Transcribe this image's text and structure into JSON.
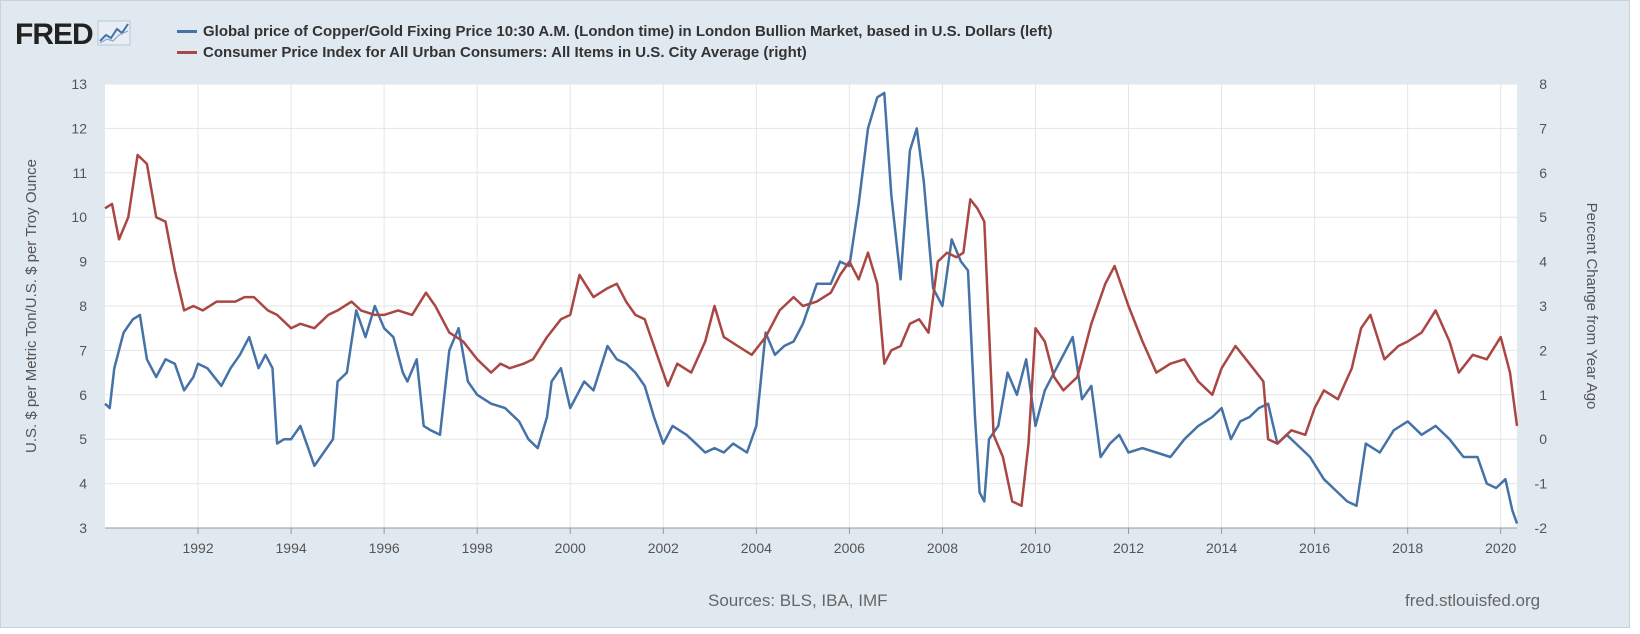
{
  "brand": {
    "name": "FRED"
  },
  "legend": {
    "items": [
      {
        "label": "Global price of Copper/Gold Fixing Price 10:30 A.M. (London time) in London Bullion Market, based in U.S. Dollars (left)",
        "color": "#4572a7"
      },
      {
        "label": "Consumer Price Index for All Urban Consumers: All Items in U.S. City Average (right)",
        "color": "#aa4643"
      }
    ]
  },
  "footer": {
    "sources": "Sources: BLS, IBA, IMF",
    "url": "fred.stlouisfed.org"
  },
  "colors": {
    "background": "#e1e9f0",
    "plot": "#ffffff",
    "grid": "#e6e6e6",
    "copper_gold": "#4572a7",
    "cpi": "#aa4643"
  },
  "chart_data": {
    "type": "line",
    "title": "",
    "xlabel": "",
    "ylabel_left": "U.S. $ per Metric Ton/U.S. $ per Troy Ounce",
    "ylabel_right": "Percent Change from Year Ago",
    "xlim": [
      1990.0,
      2020.35
    ],
    "ylim_left": [
      3,
      13
    ],
    "ylim_right": [
      -2,
      8
    ],
    "x_ticks": [
      1992,
      1994,
      1996,
      1998,
      2000,
      2002,
      2004,
      2006,
      2008,
      2010,
      2012,
      2014,
      2016,
      2018,
      2020
    ],
    "x_tick_labels": [
      "1992",
      "1994",
      "1996",
      "1998",
      "2000",
      "2002",
      "2004",
      "2006",
      "2008",
      "2010",
      "2012",
      "2014",
      "2016",
      "2018",
      "2020"
    ],
    "y_left_ticks": [
      3,
      4,
      5,
      6,
      7,
      8,
      9,
      10,
      11,
      12,
      13
    ],
    "y_left_tick_labels": [
      "3",
      "4",
      "5",
      "6",
      "7",
      "8",
      "9",
      "10",
      "11",
      "12",
      "13"
    ],
    "y_right_ticks": [
      -2,
      -1,
      0,
      1,
      2,
      3,
      4,
      5,
      6,
      7,
      8
    ],
    "y_right_tick_labels": [
      "-2",
      "-1",
      "0",
      "1",
      "2",
      "3",
      "4",
      "5",
      "6",
      "7",
      "8"
    ],
    "grid": true,
    "legend_position": "top",
    "series": [
      {
        "name": "Global price of Copper/Gold Fixing Price 10:30 A.M. (London time) in London Bullion Market, based in U.S. Dollars (left)",
        "axis": "left",
        "x": [
          1990.0,
          1990.1,
          1990.2,
          1990.4,
          1990.6,
          1990.75,
          1990.9,
          1991.1,
          1991.3,
          1991.5,
          1991.7,
          1991.9,
          1992.0,
          1992.2,
          1992.5,
          1992.7,
          1992.9,
          1993.1,
          1993.3,
          1993.45,
          1993.6,
          1993.7,
          1993.85,
          1994.0,
          1994.2,
          1994.5,
          1994.7,
          1994.9,
          1995.0,
          1995.2,
          1995.4,
          1995.6,
          1995.8,
          1996.0,
          1996.2,
          1996.4,
          1996.5,
          1996.7,
          1996.85,
          1997.0,
          1997.2,
          1997.4,
          1997.6,
          1997.8,
          1998.0,
          1998.3,
          1998.6,
          1998.9,
          1999.1,
          1999.3,
          1999.5,
          1999.6,
          1999.8,
          2000.0,
          2000.3,
          2000.5,
          2000.8,
          2001.0,
          2001.2,
          2001.4,
          2001.6,
          2001.8,
          2002.0,
          2002.2,
          2002.5,
          2002.7,
          2002.9,
          2003.1,
          2003.3,
          2003.5,
          2003.8,
          2004.0,
          2004.2,
          2004.4,
          2004.6,
          2004.8,
          2005.0,
          2005.3,
          2005.6,
          2005.8,
          2006.0,
          2006.2,
          2006.4,
          2006.6,
          2006.75,
          2006.9,
          2007.1,
          2007.3,
          2007.45,
          2007.6,
          2007.8,
          2008.0,
          2008.2,
          2008.4,
          2008.55,
          2008.7,
          2008.8,
          2008.9,
          2009.0,
          2009.2,
          2009.4,
          2009.6,
          2009.8,
          2010.0,
          2010.2,
          2010.4,
          2010.6,
          2010.8,
          2011.0,
          2011.2,
          2011.4,
          2011.6,
          2011.8,
          2012.0,
          2012.3,
          2012.6,
          2012.9,
          2013.2,
          2013.5,
          2013.8,
          2014.0,
          2014.2,
          2014.4,
          2014.6,
          2014.8,
          2015.0,
          2015.2,
          2015.4,
          2015.6,
          2015.9,
          2016.2,
          2016.5,
          2016.7,
          2016.9,
          2017.1,
          2017.4,
          2017.7,
          2018.0,
          2018.3,
          2018.6,
          2018.9,
          2019.2,
          2019.5,
          2019.7,
          2019.9,
          2020.1,
          2020.25,
          2020.35
        ],
        "values": [
          5.8,
          5.7,
          6.6,
          7.4,
          7.7,
          7.8,
          6.8,
          6.4,
          6.8,
          6.7,
          6.1,
          6.4,
          6.7,
          6.6,
          6.2,
          6.6,
          6.9,
          7.3,
          6.6,
          6.9,
          6.6,
          4.9,
          5.0,
          5.0,
          5.3,
          4.4,
          4.7,
          5.0,
          6.3,
          6.5,
          7.9,
          7.3,
          8.0,
          7.5,
          7.3,
          6.5,
          6.3,
          6.8,
          5.3,
          5.2,
          5.1,
          7.0,
          7.5,
          6.3,
          6.0,
          5.8,
          5.7,
          5.4,
          5.0,
          4.8,
          5.5,
          6.3,
          6.6,
          5.7,
          6.3,
          6.1,
          7.1,
          6.8,
          6.7,
          6.5,
          6.2,
          5.5,
          4.9,
          5.3,
          5.1,
          4.9,
          4.7,
          4.8,
          4.7,
          4.9,
          4.7,
          5.3,
          7.4,
          6.9,
          7.1,
          7.2,
          7.6,
          8.5,
          8.5,
          9.0,
          8.9,
          10.3,
          12.0,
          12.7,
          12.8,
          10.5,
          8.6,
          11.5,
          12.0,
          10.8,
          8.4,
          8.0,
          9.5,
          9.0,
          8.8,
          5.5,
          3.8,
          3.6,
          5.0,
          5.3,
          6.5,
          6.0,
          6.8,
          5.3,
          6.1,
          6.5,
          6.9,
          7.3,
          5.9,
          6.2,
          4.6,
          4.9,
          5.1,
          4.7,
          4.8,
          4.7,
          4.6,
          5.0,
          5.3,
          5.5,
          5.7,
          5.0,
          5.4,
          5.5,
          5.7,
          5.8,
          4.9,
          5.1,
          4.9,
          4.6,
          4.1,
          3.8,
          3.6,
          3.5,
          4.9,
          4.7,
          5.2,
          5.4,
          5.1,
          5.3,
          5.0,
          4.6,
          4.6,
          4.0,
          3.9,
          4.1,
          3.4,
          3.1
        ],
        "color": "#4572a7"
      },
      {
        "name": "Consumer Price Index for All Urban Consumers: All Items in U.S. City Average (right)",
        "axis": "right",
        "x": [
          1990.0,
          1990.15,
          1990.3,
          1990.5,
          1990.7,
          1990.9,
          1991.1,
          1991.3,
          1991.5,
          1991.7,
          1991.9,
          1992.1,
          1992.4,
          1992.6,
          1992.8,
          1993.0,
          1993.2,
          1993.5,
          1993.7,
          1994.0,
          1994.2,
          1994.5,
          1994.8,
          1995.0,
          1995.3,
          1995.5,
          1995.8,
          1996.0,
          1996.3,
          1996.6,
          1996.9,
          1997.1,
          1997.4,
          1997.7,
          1998.0,
          1998.3,
          1998.5,
          1998.7,
          1999.0,
          1999.2,
          1999.5,
          1999.8,
          2000.0,
          2000.2,
          2000.5,
          2000.8,
          2001.0,
          2001.2,
          2001.4,
          2001.6,
          2001.9,
          2002.1,
          2002.3,
          2002.6,
          2002.9,
          2003.1,
          2003.3,
          2003.6,
          2003.9,
          2004.2,
          2004.5,
          2004.8,
          2005.0,
          2005.3,
          2005.6,
          2005.8,
          2006.0,
          2006.2,
          2006.4,
          2006.6,
          2006.75,
          2006.9,
          2007.1,
          2007.3,
          2007.5,
          2007.7,
          2007.9,
          2008.1,
          2008.3,
          2008.45,
          2008.6,
          2008.75,
          2008.9,
          2009.1,
          2009.3,
          2009.5,
          2009.7,
          2009.85,
          2010.0,
          2010.2,
          2010.4,
          2010.6,
          2010.9,
          2011.2,
          2011.5,
          2011.7,
          2012.0,
          2012.3,
          2012.6,
          2012.9,
          2013.2,
          2013.5,
          2013.8,
          2014.0,
          2014.3,
          2014.6,
          2014.9,
          2015.0,
          2015.2,
          2015.5,
          2015.8,
          2016.0,
          2016.2,
          2016.5,
          2016.8,
          2017.0,
          2017.2,
          2017.5,
          2017.8,
          2018.0,
          2018.3,
          2018.6,
          2018.9,
          2019.1,
          2019.4,
          2019.7,
          2020.0,
          2020.2,
          2020.35
        ],
        "values": [
          5.2,
          5.3,
          4.5,
          5.0,
          6.4,
          6.2,
          5.0,
          4.9,
          3.8,
          2.9,
          3.0,
          2.9,
          3.1,
          3.1,
          3.1,
          3.2,
          3.2,
          2.9,
          2.8,
          2.5,
          2.6,
          2.5,
          2.8,
          2.9,
          3.1,
          2.9,
          2.8,
          2.8,
          2.9,
          2.8,
          3.3,
          3.0,
          2.4,
          2.2,
          1.8,
          1.5,
          1.7,
          1.6,
          1.7,
          1.8,
          2.3,
          2.7,
          2.8,
          3.7,
          3.2,
          3.4,
          3.5,
          3.1,
          2.8,
          2.7,
          1.8,
          1.2,
          1.7,
          1.5,
          2.2,
          3.0,
          2.3,
          2.1,
          1.9,
          2.3,
          2.9,
          3.2,
          3.0,
          3.1,
          3.3,
          3.7,
          4.0,
          3.6,
          4.2,
          3.5,
          1.7,
          2.0,
          2.1,
          2.6,
          2.7,
          2.4,
          4.0,
          4.2,
          4.1,
          4.2,
          5.4,
          5.2,
          4.9,
          0.1,
          -0.4,
          -1.4,
          -1.5,
          -0.1,
          2.5,
          2.2,
          1.4,
          1.1,
          1.4,
          2.6,
          3.5,
          3.9,
          3.0,
          2.2,
          1.5,
          1.7,
          1.8,
          1.3,
          1.0,
          1.6,
          2.1,
          1.7,
          1.3,
          0.0,
          -0.1,
          0.2,
          0.1,
          0.7,
          1.1,
          0.9,
          1.6,
          2.5,
          2.8,
          1.8,
          2.1,
          2.2,
          2.4,
          2.9,
          2.2,
          1.5,
          1.9,
          1.8,
          2.3,
          1.5,
          0.3
        ],
        "color": "#aa4643"
      }
    ]
  }
}
